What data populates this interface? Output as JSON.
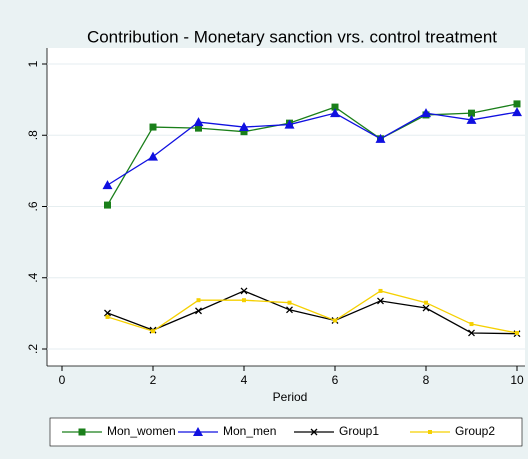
{
  "chart_data": {
    "type": "line",
    "title": "Contribution - Monetary sanction vrs. control treatment",
    "xlabel": "Period",
    "x": [
      1,
      2,
      3,
      4,
      5,
      6,
      7,
      8,
      9,
      10
    ],
    "xlim": [
      0,
      10
    ],
    "xticks": [
      0,
      2,
      4,
      6,
      8,
      10
    ],
    "ylim": [
      0.2,
      1
    ],
    "yticks": [
      {
        "value": 0.2,
        "label": ".2"
      },
      {
        "value": 0.4,
        "label": ".4"
      },
      {
        "value": 0.6,
        "label": ".6"
      },
      {
        "value": 0.8,
        "label": ".8"
      },
      1
    ],
    "grid": true,
    "series": [
      {
        "name": "Mon_women",
        "color": "#1a7f1a",
        "marker": "square",
        "values": [
          0.604,
          0.823,
          0.82,
          0.81,
          0.834,
          0.879,
          0.79,
          0.857,
          0.862,
          0.888
        ]
      },
      {
        "name": "Mon_men",
        "color": "#1010e0",
        "marker": "triangle",
        "values": [
          0.66,
          0.74,
          0.837,
          0.823,
          0.83,
          0.862,
          0.79,
          0.862,
          0.843,
          0.865
        ]
      },
      {
        "name": "Group1",
        "color": "#000000",
        "marker": "x",
        "values": [
          0.301,
          0.253,
          0.307,
          0.363,
          0.31,
          0.28,
          0.335,
          0.315,
          0.245,
          0.243
        ]
      },
      {
        "name": "Group2",
        "color": "#f5d000",
        "marker": "smallsquare",
        "values": [
          0.29,
          0.25,
          0.337,
          0.337,
          0.33,
          0.28,
          0.363,
          0.33,
          0.27,
          0.245
        ]
      }
    ]
  }
}
